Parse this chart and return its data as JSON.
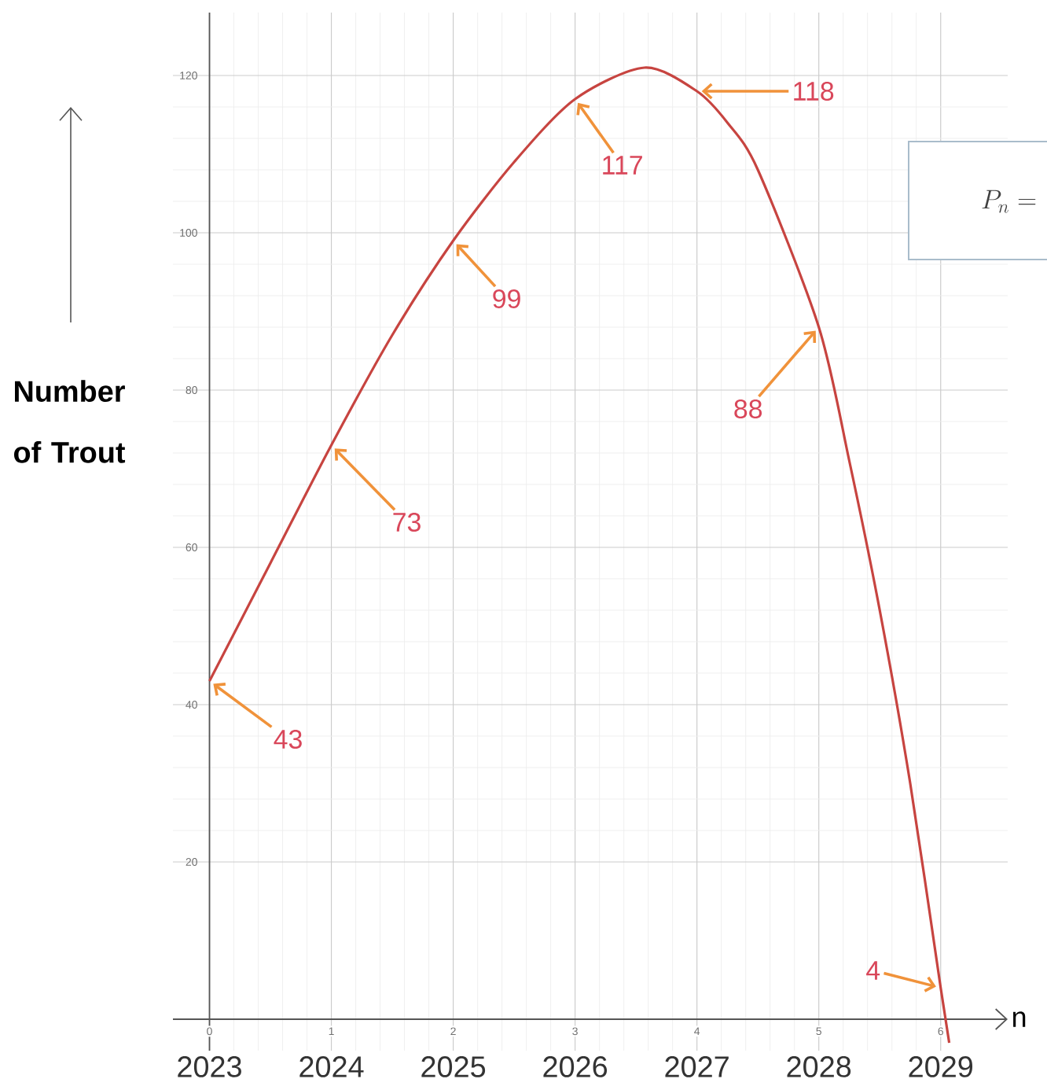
{
  "chart_data": {
    "type": "line",
    "xlabel": "n",
    "ylabel": "Number of Trout",
    "x": [
      0,
      0.5,
      1,
      1.5,
      2,
      2.5,
      3,
      3.57,
      4,
      4.25,
      4.5,
      5,
      5.25,
      5.5,
      5.75,
      6,
      6.07
    ],
    "series": [
      {
        "color": "#c74440",
        "values": [
          43,
          58,
          73,
          87,
          99,
          109,
          117,
          121,
          118,
          114,
          108,
          88,
          71,
          52,
          30,
          4,
          -3
        ]
      }
    ],
    "xlim": [
      -0.3,
      6.55
    ],
    "ylim": [
      -4,
      128
    ],
    "xticks": [
      0,
      1,
      2,
      3,
      4,
      5,
      6
    ],
    "yticks": [
      20,
      40,
      60,
      80,
      100,
      120
    ],
    "x2lim": [
      2022.7,
      2029.55
    ],
    "x2ticks": [
      2023,
      2024,
      2025,
      2026,
      2027,
      2028,
      2029
    ],
    "grid": true,
    "annotations": [
      {
        "text": "43",
        "x": 0,
        "y": 43
      },
      {
        "text": "73",
        "x": 1,
        "y": 73
      },
      {
        "text": "99",
        "x": 2,
        "y": 99
      },
      {
        "text": "117",
        "x": 3,
        "y": 117
      },
      {
        "text": "118",
        "x": 4,
        "y": 118
      },
      {
        "text": "88",
        "x": 5,
        "y": 88
      },
      {
        "text": "4",
        "x": 6,
        "y": 4
      },
      "P_n ="
    ]
  }
}
